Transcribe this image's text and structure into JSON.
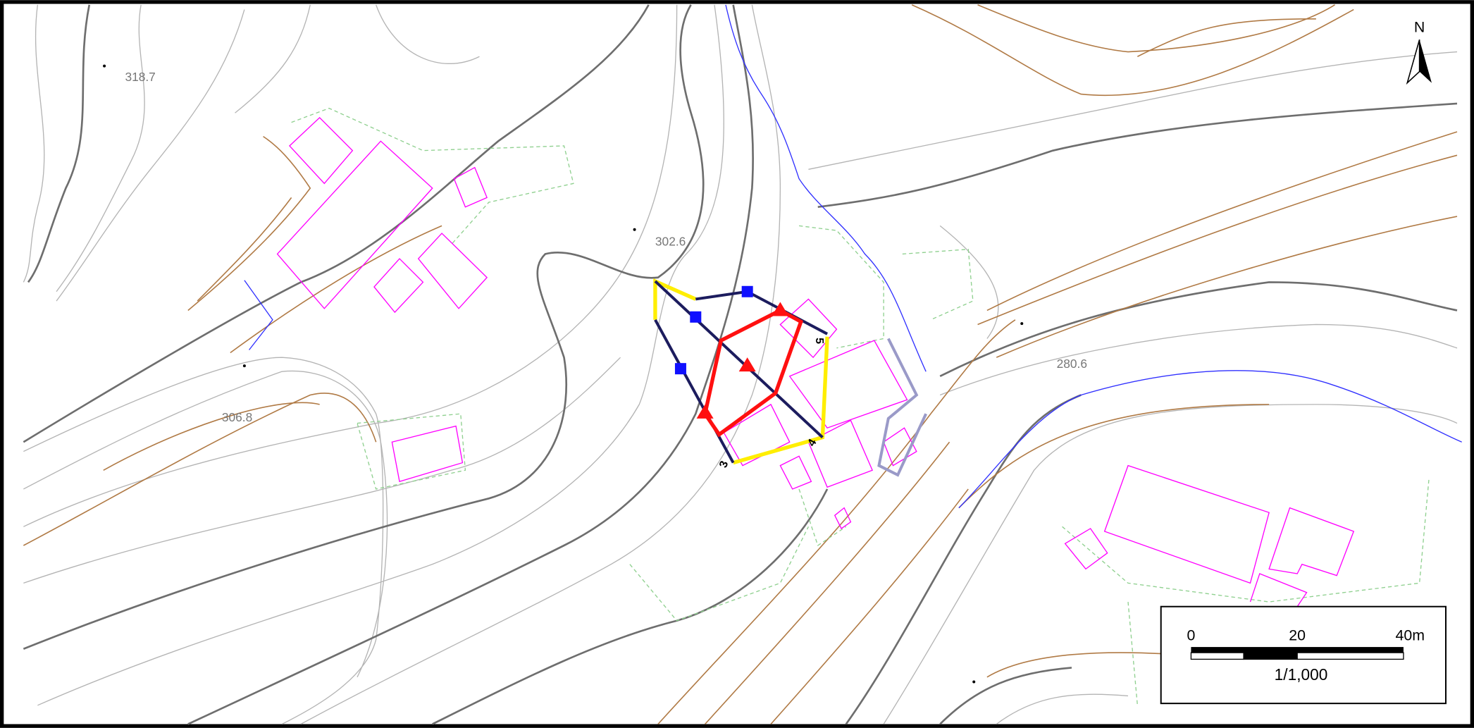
{
  "north_label": "N",
  "elevations": [
    "318.7",
    "302.6",
    "306.8",
    "280.6"
  ],
  "line_labels": [
    "3",
    "4",
    "5"
  ],
  "scale": {
    "ticks": [
      "0",
      "20",
      "40m"
    ],
    "ratio": "1/1,000"
  }
}
